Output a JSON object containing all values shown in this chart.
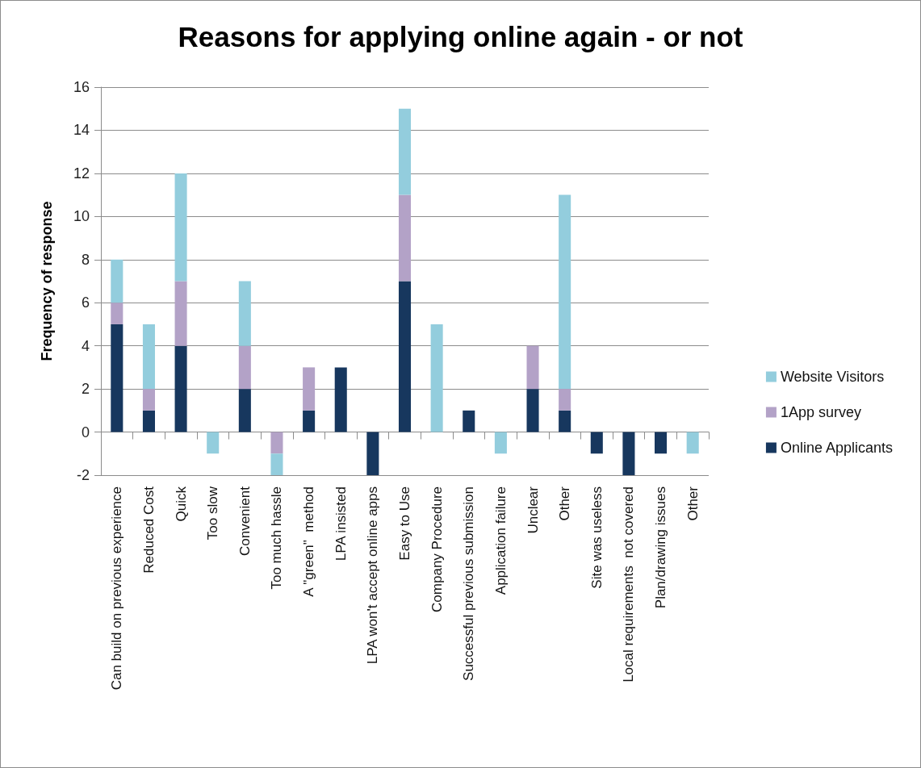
{
  "chart_data": {
    "type": "bar",
    "title": "Reasons for applying online again - or not",
    "ylabel": "Frequency of response",
    "categories": [
      "Can build on previous experience",
      "Reduced Cost",
      "Quick",
      "Too slow",
      "Convenient",
      "Too much hassle",
      "A \"green\"  method",
      "LPA insisted",
      "LPA won't accept online apps",
      "Easy to Use",
      "Company Procedure",
      "Successful previous submission",
      "Application failure",
      "Unclear",
      "Other",
      "Site was useless",
      "Local requirements  not covered",
      "Plan/drawing issues",
      "Other"
    ],
    "series": [
      {
        "name": "Online Applicants",
        "color": "#17375e",
        "values": [
          5,
          1,
          4,
          null,
          2,
          null,
          1,
          3,
          -2,
          7,
          null,
          1,
          null,
          2,
          1,
          -1,
          -2,
          -1,
          null
        ]
      },
      {
        "name": "1App survey",
        "color": "#b3a2c7",
        "values": [
          1,
          1,
          3,
          null,
          2,
          -1,
          2,
          null,
          null,
          4,
          null,
          null,
          null,
          2,
          1,
          null,
          null,
          null,
          null
        ]
      },
      {
        "name": "Website Visitors",
        "color": "#93cddd",
        "values": [
          2,
          3,
          5,
          -1,
          3,
          -1,
          null,
          null,
          null,
          4,
          5,
          null,
          -1,
          null,
          9,
          null,
          null,
          null,
          -1
        ]
      }
    ],
    "stacked": true,
    "ylim": [
      -2,
      16
    ],
    "yticks": [
      -2,
      0,
      2,
      4,
      6,
      8,
      10,
      12,
      14,
      16
    ],
    "grid": "y",
    "legend": "right"
  }
}
